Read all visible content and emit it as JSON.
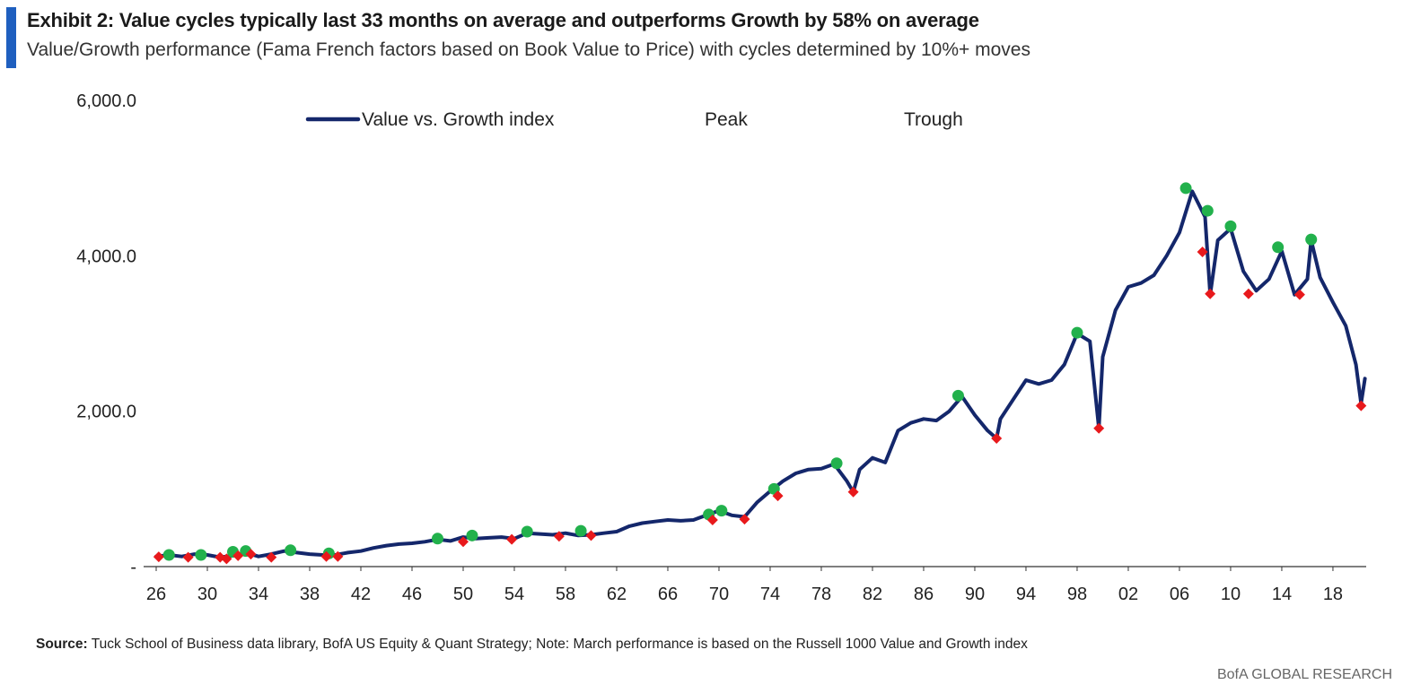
{
  "header": {
    "title": "Exhibit 2: Value cycles typically last 33 months on average and outperforms Growth by 58% on average",
    "subtitle": "Value/Growth performance (Fama French factors based on Book Value to Price) with cycles determined by 10%+ moves"
  },
  "footer": {
    "source_label": "Source:",
    "source_text": "Tuck School of Business data library, BofA US Equity & Quant Strategy; Note: March performance is based on the Russell 1000 Value and Growth index",
    "brand": "BofA GLOBAL RESEARCH"
  },
  "colors": {
    "line": "#14276b",
    "peak": "#22b14c",
    "trough": "#e8191c",
    "accent": "#1f5fbf"
  },
  "chart_data": {
    "type": "line",
    "title": "Exhibit 2: Value cycles typically last 33 months on average and outperforms Growth by 58% on average",
    "xlabel": "",
    "ylabel": "",
    "xlim": [
      1926,
      2020.6
    ],
    "ylim": [
      0,
      6000
    ],
    "y_ticks": [
      0,
      2000,
      4000,
      6000
    ],
    "y_tick_labels": [
      "-",
      "2,000.0",
      "4,000.0",
      "6,000.0"
    ],
    "x_ticks": [
      1926,
      1930,
      1934,
      1938,
      1942,
      1946,
      1950,
      1954,
      1958,
      1962,
      1966,
      1970,
      1974,
      1978,
      1982,
      1986,
      1990,
      1994,
      1998,
      2002,
      2006,
      2010,
      2014,
      2018
    ],
    "x_tick_labels": [
      "26",
      "30",
      "34",
      "38",
      "42",
      "46",
      "50",
      "54",
      "58",
      "62",
      "66",
      "70",
      "74",
      "78",
      "82",
      "86",
      "90",
      "94",
      "98",
      "02",
      "06",
      "10",
      "14",
      "18"
    ],
    "legend": {
      "placement": "top",
      "items": [
        {
          "label": "Value vs. Growth index",
          "marker": "line"
        },
        {
          "label": "Peak",
          "marker": "none"
        },
        {
          "label": "Trough",
          "marker": "none"
        }
      ]
    },
    "series": [
      {
        "name": "Value vs. Growth index",
        "x": [
          1926,
          1927,
          1928,
          1929,
          1930,
          1931,
          1932,
          1933,
          1934,
          1935,
          1936,
          1937,
          1938,
          1939,
          1940,
          1941,
          1942,
          1943,
          1944,
          1945,
          1946,
          1947,
          1948,
          1949,
          1950,
          1951,
          1952,
          1953,
          1954,
          1955,
          1956,
          1957,
          1958,
          1959,
          1960,
          1961,
          1962,
          1963,
          1964,
          1965,
          1966,
          1967,
          1968,
          1969,
          1970,
          1971,
          1972,
          1973,
          1974,
          1975,
          1976,
          1977,
          1978,
          1979,
          1980,
          1980.5,
          1981,
          1982,
          1983,
          1984,
          1985,
          1986,
          1987,
          1988,
          1989,
          1990,
          1991,
          1991.7,
          1992,
          1993,
          1994,
          1995,
          1996,
          1997,
          1998,
          1999,
          1999.7,
          2000,
          2001,
          2002,
          2003,
          2004,
          2005,
          2006,
          2007,
          2008,
          2008.4,
          2009,
          2010,
          2011,
          2012,
          2013,
          2014,
          2015,
          2016,
          2016.3,
          2017,
          2018,
          2019,
          2019.8,
          2020.2,
          2020.5
        ],
        "values": [
          130,
          150,
          130,
          160,
          150,
          120,
          140,
          180,
          130,
          160,
          200,
          180,
          160,
          150,
          150,
          180,
          200,
          240,
          270,
          290,
          300,
          320,
          350,
          330,
          380,
          360,
          370,
          380,
          360,
          430,
          420,
          410,
          430,
          400,
          410,
          430,
          450,
          520,
          560,
          580,
          600,
          590,
          600,
          660,
          720,
          660,
          640,
          830,
          970,
          1100,
          1200,
          1250,
          1260,
          1320,
          1100,
          960,
          1250,
          1400,
          1340,
          1750,
          1850,
          1900,
          1880,
          2000,
          2190,
          1950,
          1750,
          1650,
          1900,
          2150,
          2400,
          2350,
          2400,
          2600,
          3000,
          2900,
          1780,
          2700,
          3300,
          3600,
          3650,
          3750,
          4000,
          4300,
          4830,
          4500,
          3500,
          4200,
          4350,
          3800,
          3550,
          3700,
          4060,
          3500,
          3700,
          4200,
          3720,
          3400,
          3100,
          2600,
          2100,
          2420
        ]
      },
      {
        "name": "Peak",
        "x": [
          1927,
          1929.5,
          1932,
          1933,
          1936.5,
          1939.5,
          1948,
          1950.7,
          1955,
          1959.2,
          1969.2,
          1970.2,
          1974.3,
          1979.2,
          1988.7,
          1998,
          2006.5,
          2008.2,
          2010,
          2013.7,
          2016.3
        ],
        "values": [
          150,
          150,
          190,
          200,
          210,
          170,
          360,
          400,
          450,
          460,
          670,
          720,
          1000,
          1330,
          2200,
          3010,
          4870,
          4580,
          4380,
          4110,
          4210
        ]
      },
      {
        "name": "Trough",
        "x": [
          1926.2,
          1928.5,
          1931,
          1931.5,
          1932.4,
          1933.4,
          1935,
          1939.3,
          1940.2,
          1950,
          1953.8,
          1957.5,
          1960,
          1969.5,
          1972,
          1974.6,
          1980.5,
          1991.7,
          1999.7,
          2007.8,
          2008.4,
          2011.4,
          2015.4,
          2020.2
        ],
        "values": [
          125,
          120,
          120,
          100,
          140,
          160,
          120,
          130,
          130,
          320,
          350,
          390,
          400,
          600,
          610,
          910,
          960,
          1650,
          1780,
          4050,
          3510,
          3510,
          3500,
          2070
        ]
      }
    ]
  }
}
